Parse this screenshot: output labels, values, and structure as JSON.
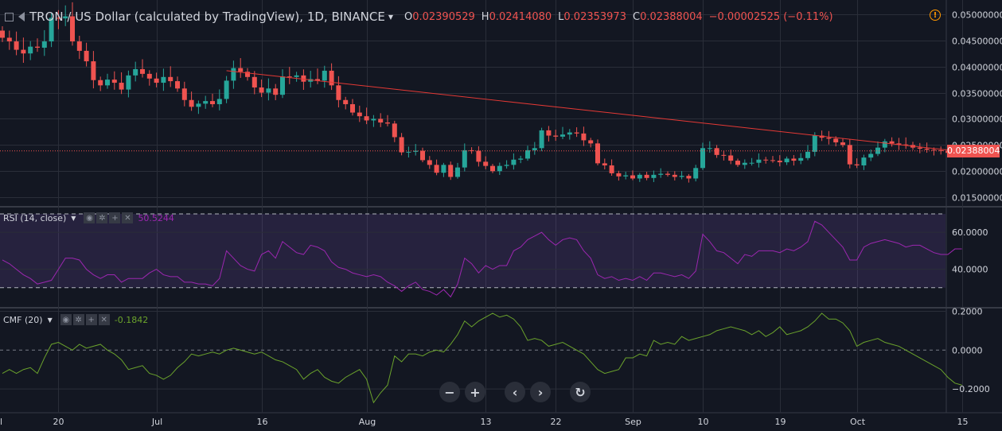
{
  "header": {
    "title": "TRON / US Dollar (calculated by TradingView), 1D, BINANCE",
    "ohlc": [
      {
        "k": "O",
        "v": "0.02390529"
      },
      {
        "k": "H",
        "v": "0.02414080"
      },
      {
        "k": "L",
        "v": "0.02353973"
      },
      {
        "k": "C",
        "v": "0.02388004"
      }
    ],
    "change": "−0.00002525 (−0.11%)"
  },
  "rsi_legend": {
    "label": "RSI (14, close)",
    "value": "50.5244"
  },
  "cmf_legend": {
    "label": "CMF (20)",
    "value": "-0.1842"
  },
  "last_price_label": "0.02388004",
  "colors": {
    "up": "#26a69a",
    "down": "#ef5350",
    "rsi": "#9c27b0",
    "cmf": "#6ba32c",
    "trendline": "#e53935",
    "background": "#131722"
  },
  "navigation": {
    "zoom_out_icon": "minus-icon",
    "zoom_in_icon": "plus-icon",
    "scroll_left_icon": "chevron-left-icon",
    "scroll_right_icon": "chevron-right-icon",
    "reset_icon": "reset-icon"
  },
  "chart_data": [
    {
      "type": "candlestick",
      "title": "TRON / US Dollar (calculated by TradingView), 1D, BINANCE",
      "x_ticks": [
        "20",
        "Jul",
        "16",
        "Aug",
        "13",
        "22",
        "Sep",
        "10",
        "19",
        "Oct",
        "15"
      ],
      "y_ticks": [
        "0.05000000",
        "0.04500000",
        "0.04000000",
        "0.03500000",
        "0.03000000",
        "0.02500000",
        "0.02000000",
        "0.01500000"
      ],
      "ylim": [
        0.0135,
        0.0515
      ],
      "last_price": 0.02388004,
      "trendline": {
        "from": {
          "day": 32,
          "price": 0.0392
        },
        "to": {
          "day": 136,
          "price": 0.0239
        }
      },
      "closes": [
        0.0455,
        0.0448,
        0.0432,
        0.0425,
        0.0438,
        0.0436,
        0.0448,
        0.0493,
        0.0492,
        0.0496,
        0.0448,
        0.043,
        0.041,
        0.0374,
        0.0364,
        0.0375,
        0.0369,
        0.0356,
        0.0383,
        0.0395,
        0.0386,
        0.0377,
        0.0369,
        0.038,
        0.0372,
        0.0358,
        0.0336,
        0.0323,
        0.0329,
        0.0334,
        0.0328,
        0.0338,
        0.0373,
        0.0397,
        0.039,
        0.038,
        0.036,
        0.035,
        0.0358,
        0.0346,
        0.0381,
        0.038,
        0.0383,
        0.0371,
        0.0376,
        0.0373,
        0.0392,
        0.0364,
        0.0336,
        0.0328,
        0.0312,
        0.0305,
        0.0297,
        0.03,
        0.0293,
        0.0291,
        0.0265,
        0.0236,
        0.0237,
        0.0239,
        0.0221,
        0.0212,
        0.0197,
        0.0212,
        0.0189,
        0.0207,
        0.024,
        0.0239,
        0.0218,
        0.021,
        0.02,
        0.021,
        0.0212,
        0.0222,
        0.0224,
        0.024,
        0.0244,
        0.0278,
        0.0268,
        0.0266,
        0.027,
        0.0274,
        0.0272,
        0.0259,
        0.0253,
        0.0215,
        0.0211,
        0.0196,
        0.019,
        0.0192,
        0.0186,
        0.0193,
        0.0187,
        0.0193,
        0.0195,
        0.0193,
        0.0189,
        0.0191,
        0.0186,
        0.0206,
        0.0244,
        0.0244,
        0.0231,
        0.023,
        0.022,
        0.0212,
        0.0216,
        0.0216,
        0.0222,
        0.0221,
        0.022,
        0.0217,
        0.0224,
        0.022,
        0.0225,
        0.0237,
        0.0268,
        0.0264,
        0.0262,
        0.0255,
        0.025,
        0.0213,
        0.0211,
        0.0226,
        0.0233,
        0.0245,
        0.0257,
        0.0253,
        0.0251,
        0.025,
        0.0245,
        0.0243,
        0.0241,
        0.024,
        0.0239,
        0.0235,
        0.024,
        0.0239
      ]
    },
    {
      "type": "line",
      "name": "RSI (14, close)",
      "y_ticks": [
        "60.0000",
        "40.0000"
      ],
      "ylim": [
        20,
        73
      ],
      "bands": [
        30,
        70
      ],
      "values": [
        45,
        43,
        40,
        37,
        35,
        32,
        33,
        34,
        40,
        46,
        46,
        45,
        40,
        37,
        35,
        37,
        37,
        33,
        35,
        35,
        35,
        38,
        40,
        37,
        36,
        36,
        33,
        33,
        32,
        32,
        31,
        35,
        50,
        46,
        42,
        40,
        39,
        48,
        50,
        46,
        55,
        52,
        49,
        48,
        53,
        52,
        50,
        44,
        41,
        40,
        38,
        37,
        36,
        37,
        36,
        33,
        31,
        28,
        31,
        33,
        29,
        28,
        26,
        29,
        25,
        32,
        46,
        43,
        38,
        42,
        40,
        42,
        42,
        50,
        52,
        56,
        58,
        60,
        56,
        53,
        56,
        57,
        56,
        50,
        46,
        37,
        35,
        36,
        34,
        35,
        34,
        36,
        34,
        38,
        38,
        37,
        36,
        37,
        35,
        39,
        59,
        55,
        50,
        49,
        46,
        43,
        48,
        47,
        50,
        50,
        50,
        49,
        51,
        50,
        52,
        55,
        66,
        64,
        60,
        56,
        52,
        45,
        45,
        52,
        54,
        55,
        56,
        55,
        54,
        52,
        53,
        53,
        51,
        49,
        48,
        48,
        51,
        51
      ]
    },
    {
      "type": "line",
      "name": "CMF (20)",
      "y_ticks": [
        "0.2000",
        "0.0000",
        "−0.2000"
      ],
      "ylim": [
        -0.31,
        0.21
      ],
      "values": [
        -0.12,
        -0.1,
        -0.12,
        -0.1,
        -0.09,
        -0.12,
        -0.04,
        0.03,
        0.04,
        0.02,
        0.0,
        0.03,
        0.01,
        0.02,
        0.03,
        0.0,
        -0.02,
        -0.05,
        -0.1,
        -0.09,
        -0.08,
        -0.12,
        -0.13,
        -0.15,
        -0.13,
        -0.09,
        -0.06,
        -0.02,
        -0.03,
        -0.02,
        -0.01,
        -0.02,
        0.0,
        0.01,
        0.0,
        -0.01,
        -0.02,
        -0.01,
        -0.03,
        -0.05,
        -0.06,
        -0.08,
        -0.1,
        -0.15,
        -0.12,
        -0.1,
        -0.14,
        -0.16,
        -0.17,
        -0.14,
        -0.12,
        -0.1,
        -0.15,
        -0.27,
        -0.22,
        -0.18,
        -0.03,
        -0.06,
        -0.02,
        -0.02,
        -0.03,
        -0.01,
        0.0,
        -0.01,
        0.03,
        0.08,
        0.15,
        0.12,
        0.15,
        0.17,
        0.19,
        0.17,
        0.18,
        0.16,
        0.12,
        0.05,
        0.06,
        0.05,
        0.02,
        0.03,
        0.04,
        0.02,
        0.0,
        -0.02,
        -0.06,
        -0.1,
        -0.12,
        -0.11,
        -0.1,
        -0.04,
        -0.04,
        -0.02,
        -0.03,
        0.05,
        0.03,
        0.04,
        0.03,
        0.07,
        0.05,
        0.06,
        0.07,
        0.08,
        0.1,
        0.11,
        0.12,
        0.11,
        0.1,
        0.08,
        0.1,
        0.07,
        0.09,
        0.12,
        0.08,
        0.09,
        0.1,
        0.12,
        0.15,
        0.19,
        0.16,
        0.16,
        0.14,
        0.1,
        0.02,
        0.04,
        0.05,
        0.06,
        0.04,
        0.03,
        0.02,
        0.0,
        -0.02,
        -0.04,
        -0.06,
        -0.08,
        -0.1,
        -0.14,
        -0.17,
        -0.18
      ]
    }
  ]
}
